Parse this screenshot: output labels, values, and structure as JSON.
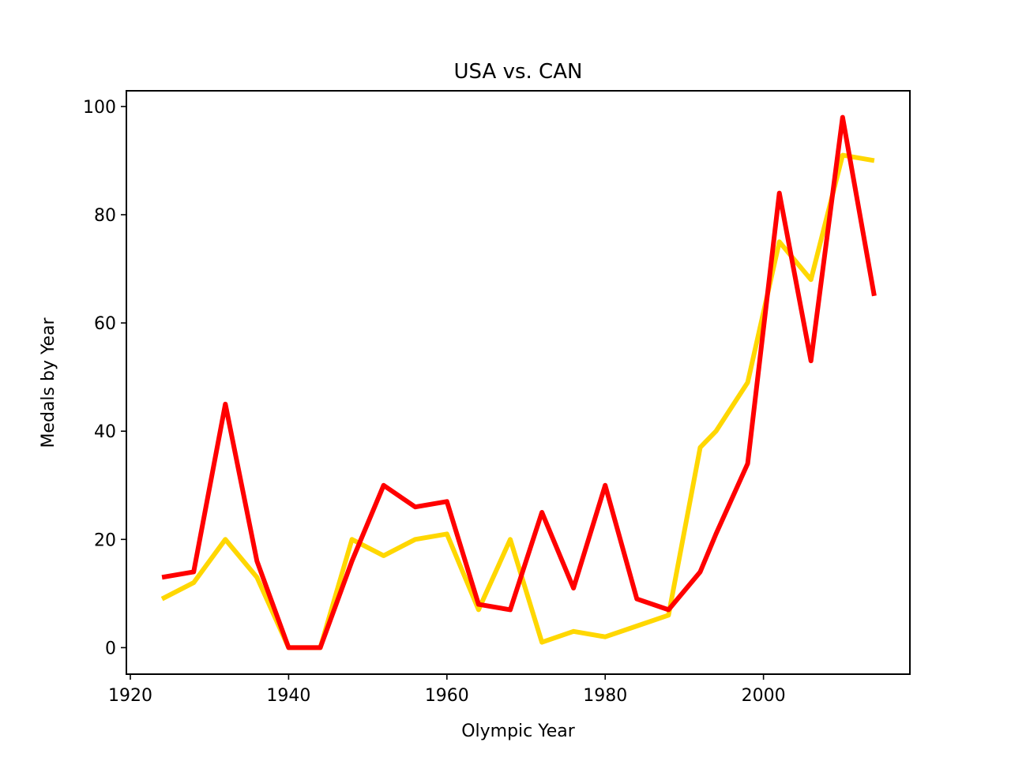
{
  "chart_data": {
    "type": "line",
    "title": "USA vs. CAN",
    "xlabel": "Olympic Year",
    "ylabel": "Medals by Year",
    "xlim": [
      1919.5,
      2018.5
    ],
    "ylim": [
      -4.9,
      102.9
    ],
    "x_ticks": [
      1920,
      1940,
      1960,
      1980,
      2000
    ],
    "y_ticks": [
      0,
      20,
      40,
      60,
      80,
      100
    ],
    "grid": false,
    "legend": "none",
    "series": [
      {
        "color": "#ffd700",
        "points": [
          [
            1924,
            9
          ],
          [
            1928,
            12
          ],
          [
            1932,
            20
          ],
          [
            1936,
            13
          ],
          [
            1940,
            0
          ],
          [
            1944,
            0
          ],
          [
            1948,
            20
          ],
          [
            1952,
            17
          ],
          [
            1956,
            20
          ],
          [
            1960,
            21
          ],
          [
            1964,
            7
          ],
          [
            1968,
            20
          ],
          [
            1972,
            1
          ],
          [
            1976,
            3
          ],
          [
            1980,
            2
          ],
          [
            1984,
            4
          ],
          [
            1988,
            6
          ],
          [
            1992,
            37
          ],
          [
            1994,
            40
          ],
          [
            1998,
            49
          ],
          [
            2002,
            75
          ],
          [
            2006,
            68
          ],
          [
            2010,
            91
          ],
          [
            2014,
            90
          ]
        ]
      },
      {
        "color": "#ff0000",
        "points": [
          [
            1924,
            13
          ],
          [
            1928,
            14
          ],
          [
            1932,
            45
          ],
          [
            1936,
            16
          ],
          [
            1940,
            0
          ],
          [
            1944,
            0
          ],
          [
            1948,
            16
          ],
          [
            1952,
            30
          ],
          [
            1956,
            26
          ],
          [
            1960,
            27
          ],
          [
            1964,
            8
          ],
          [
            1968,
            7
          ],
          [
            1972,
            25
          ],
          [
            1976,
            11
          ],
          [
            1980,
            30
          ],
          [
            1984,
            9
          ],
          [
            1988,
            7
          ],
          [
            1992,
            14
          ],
          [
            1994,
            21
          ],
          [
            1998,
            34
          ],
          [
            2002,
            84
          ],
          [
            2006,
            53
          ],
          [
            2010,
            98
          ],
          [
            2014,
            65
          ]
        ]
      }
    ]
  }
}
